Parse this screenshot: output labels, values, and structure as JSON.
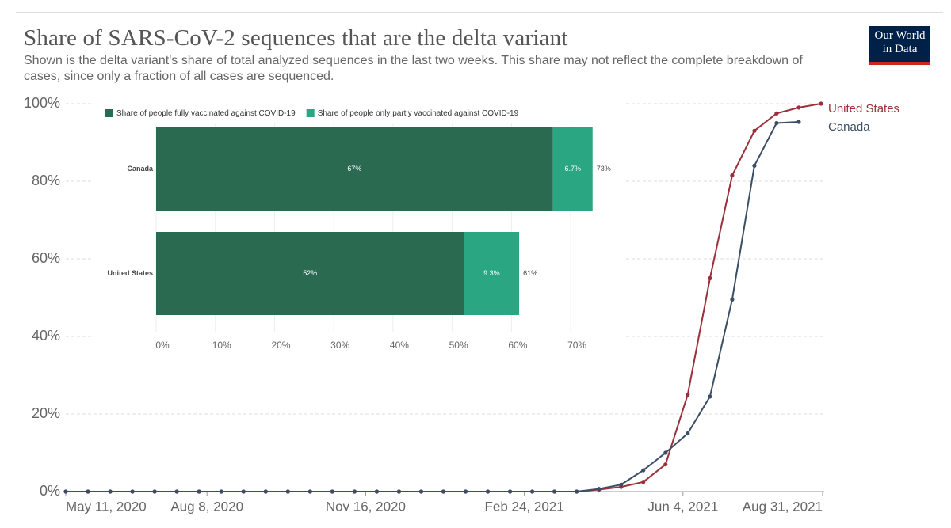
{
  "logo": [
    "Our World",
    "in Data"
  ],
  "chart_data": [
    {
      "type": "line",
      "title": "Share of SARS-CoV-2 sequences that are the delta variant",
      "subtitle": "Shown is the delta variant's share of total analyzed sequences in the last two weeks. This share may not reflect the complete breakdown of cases, since only a fraction of all cases are sequenced.",
      "x": [
        "2020-05-11",
        "2020-05-25",
        "2020-06-08",
        "2020-06-22",
        "2020-07-06",
        "2020-07-20",
        "2020-08-03",
        "2020-08-17",
        "2020-08-31",
        "2020-09-14",
        "2020-09-28",
        "2020-10-12",
        "2020-10-26",
        "2020-11-09",
        "2020-11-23",
        "2020-12-07",
        "2020-12-21",
        "2021-01-04",
        "2021-01-18",
        "2021-02-01",
        "2021-02-15",
        "2021-03-01",
        "2021-03-15",
        "2021-03-29",
        "2021-04-12",
        "2021-04-26",
        "2021-05-10",
        "2021-05-24",
        "2021-06-07",
        "2021-06-21",
        "2021-07-05",
        "2021-07-19",
        "2021-08-02",
        "2021-08-16",
        "2021-08-30"
      ],
      "series": [
        {
          "name": "United States",
          "color": "#9a3039",
          "values": [
            0,
            0,
            0,
            0,
            0,
            0,
            0,
            0,
            0,
            0,
            0,
            0,
            0,
            0,
            0,
            0,
            0,
            0,
            0,
            0,
            0,
            0,
            0,
            0,
            0.5,
            1.2,
            2.5,
            7,
            25,
            55,
            81.5,
            93,
            97.5,
            99,
            100
          ]
        },
        {
          "name": "Canada",
          "color": "#3c4e66",
          "values": [
            0,
            0,
            0,
            0,
            0,
            0,
            0,
            0,
            0,
            0,
            0,
            0,
            0,
            0,
            0,
            0,
            0,
            0,
            0,
            0,
            0,
            0,
            0,
            0,
            0.7,
            1.8,
            5.5,
            10,
            15,
            24.5,
            49.5,
            84,
            95,
            95.3,
            null
          ]
        }
      ],
      "xlim": [
        "2020-05-11",
        "2021-08-31"
      ],
      "xticks": [
        {
          "value": "2020-05-11",
          "label": "May 11, 2020"
        },
        {
          "value": "2020-08-08",
          "label": "Aug 8, 2020"
        },
        {
          "value": "2020-11-16",
          "label": "Nov 16, 2020"
        },
        {
          "value": "2021-02-24",
          "label": "Feb 24, 2021"
        },
        {
          "value": "2021-06-04",
          "label": "Jun 4, 2021"
        },
        {
          "value": "2021-08-31",
          "label": "Aug 31, 2021"
        }
      ],
      "ylim": [
        0,
        100
      ],
      "yticks": [
        {
          "value": 0,
          "label": "0%"
        },
        {
          "value": 20,
          "label": "20%"
        },
        {
          "value": 40,
          "label": "40%"
        },
        {
          "value": 60,
          "label": "60%"
        },
        {
          "value": 80,
          "label": "80%"
        },
        {
          "value": 100,
          "label": "100%"
        }
      ],
      "grid": true
    },
    {
      "type": "bar",
      "orientation": "horizontal",
      "stacked": true,
      "categories": [
        "Canada",
        "United States"
      ],
      "series": [
        {
          "name": "Share of people fully vaccinated against COVID-19",
          "color": "#2a6a50",
          "values": [
            67,
            52
          ],
          "value_labels": [
            "67%",
            "52%"
          ]
        },
        {
          "name": "Share of people only partly vaccinated against COVID-19",
          "color": "#2ba683",
          "values": [
            6.7,
            9.3
          ],
          "value_labels": [
            "6.7%",
            "9.3%"
          ]
        }
      ],
      "totals": [
        73,
        61
      ],
      "total_labels": [
        "73%",
        "61%"
      ],
      "xlim": [
        0,
        74
      ],
      "xticks": [
        {
          "value": 0,
          "label": "0%"
        },
        {
          "value": 10,
          "label": "10%"
        },
        {
          "value": 20,
          "label": "20%"
        },
        {
          "value": 30,
          "label": "30%"
        },
        {
          "value": 40,
          "label": "40%"
        },
        {
          "value": 50,
          "label": "50%"
        },
        {
          "value": 60,
          "label": "60%"
        },
        {
          "value": 70,
          "label": "70%"
        }
      ],
      "grid": true
    }
  ]
}
